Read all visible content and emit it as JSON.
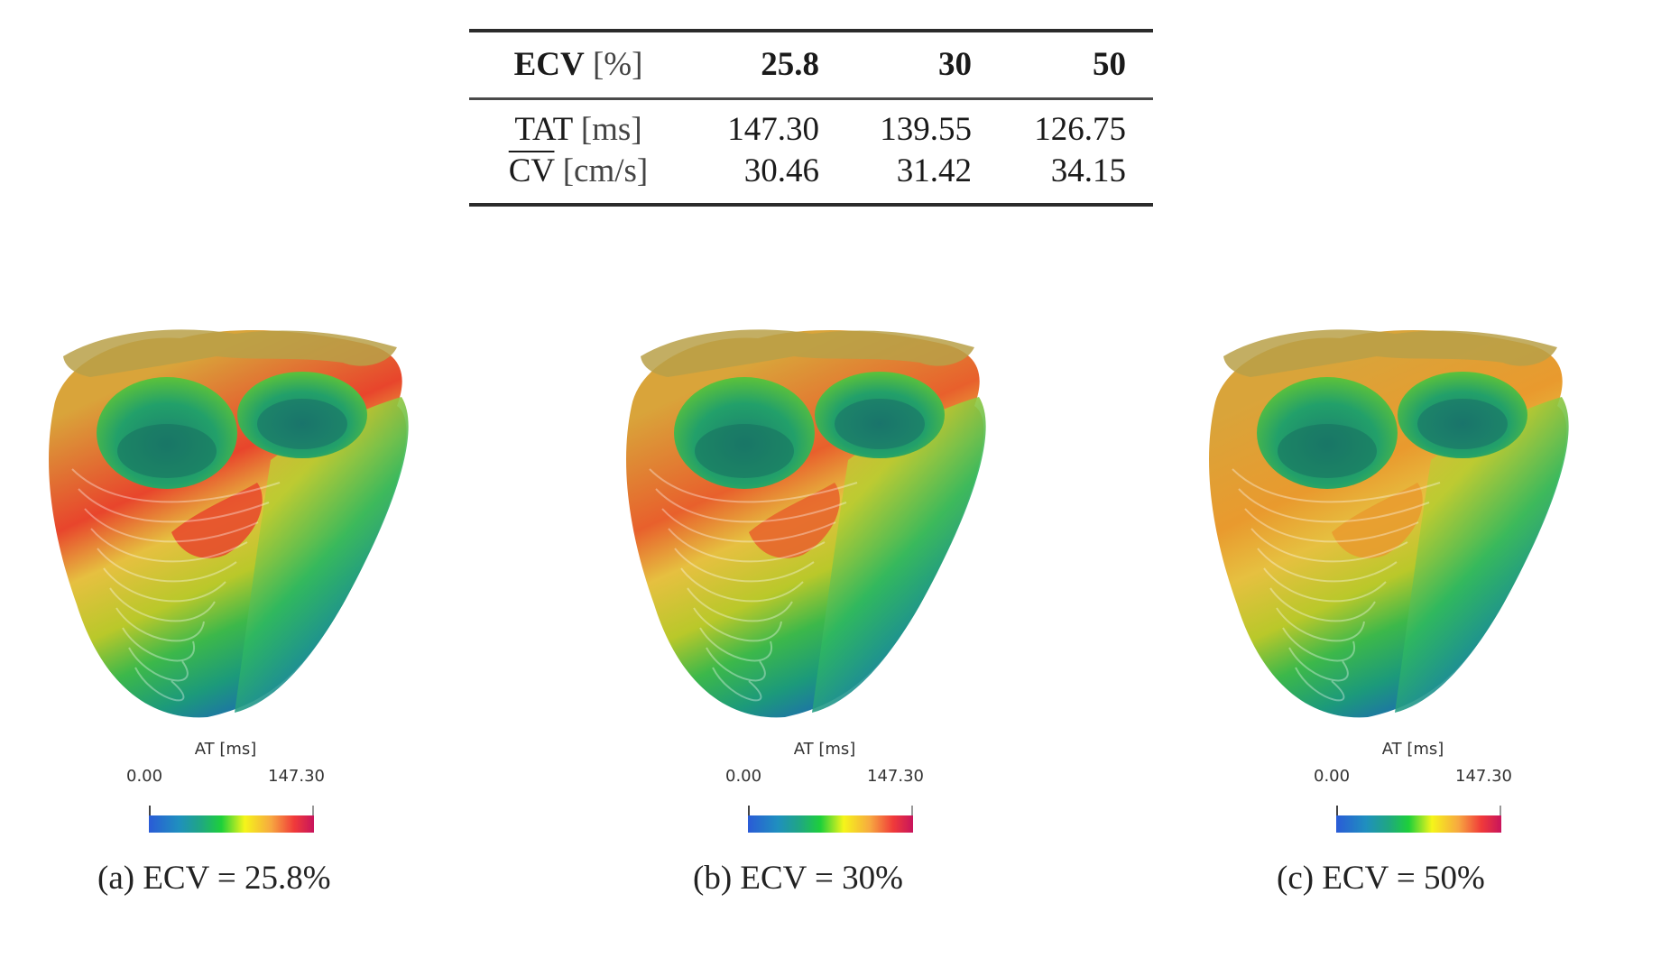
{
  "table": {
    "header": {
      "label_bold": "ECV",
      "label_unit": "[%]",
      "values": [
        "25.8",
        "30",
        "50"
      ]
    },
    "rows": [
      {
        "label_name": "TAT",
        "label_unit": "[ms]",
        "overline": false,
        "values": [
          "147.30",
          "139.55",
          "126.75"
        ]
      },
      {
        "label_name": "CV",
        "label_unit": "[cm/s]",
        "overline": true,
        "values": [
          "30.46",
          "31.42",
          "34.15"
        ]
      }
    ]
  },
  "panels": [
    {
      "id": "a",
      "caption": "(a) ECV = 25.8%",
      "colorbar": {
        "title": "AT [ms]",
        "min": "0.00",
        "max": "147.30"
      },
      "peak_color": "#e8452c"
    },
    {
      "id": "b",
      "caption": "(b) ECV = 30%",
      "colorbar": {
        "title": "AT [ms]",
        "min": "0.00",
        "max": "147.30"
      },
      "peak_color": "#e8602c"
    },
    {
      "id": "c",
      "caption": "(c) ECV = 50%",
      "colorbar": {
        "title": "AT [ms]",
        "min": "0.00",
        "max": "147.30"
      },
      "peak_color": "#e99a2e"
    }
  ],
  "colormap": {
    "stops": [
      "#2a5bd7",
      "#1f8fbf",
      "#1fa880",
      "#1ed03a",
      "#f5f51a",
      "#f7a840",
      "#f03a3a",
      "#c8145c"
    ]
  }
}
